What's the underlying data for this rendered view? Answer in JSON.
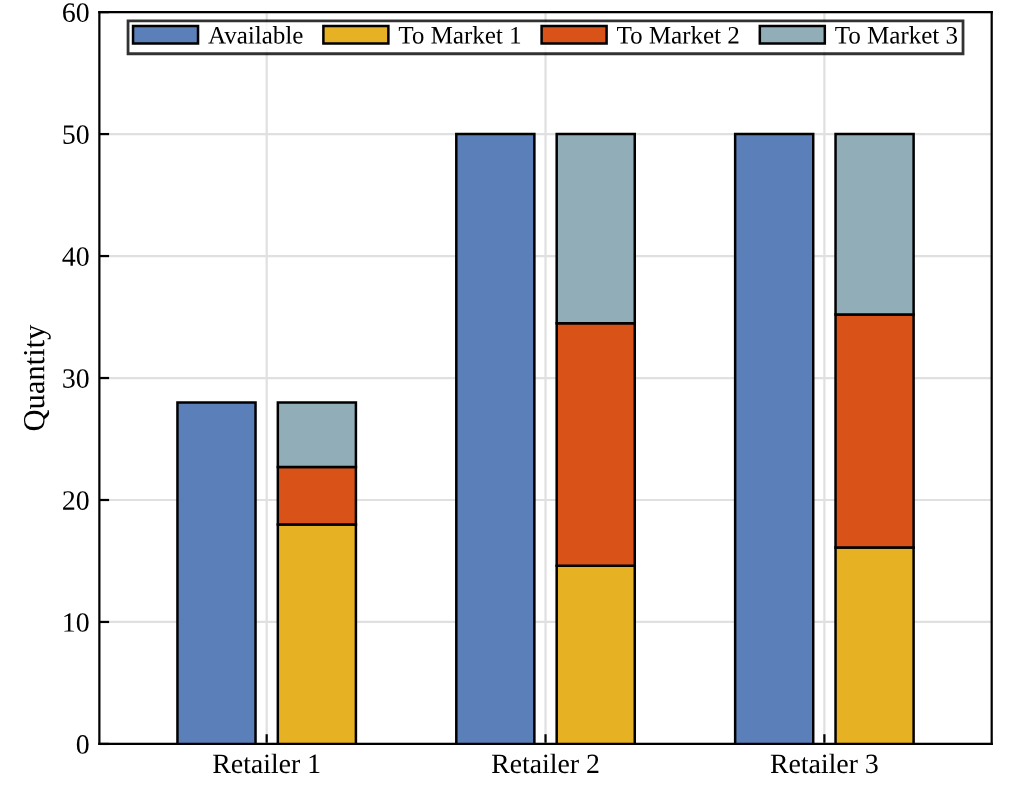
{
  "chart_data": {
    "type": "bar",
    "ylabel": "Quantity",
    "categories": [
      "Retailer 1",
      "Retailer 2",
      "Retailer 3"
    ],
    "series": [
      {
        "name": "Available",
        "color": "#5b7fb9",
        "values": [
          28,
          50,
          50
        ]
      },
      {
        "name": "To Market 1",
        "color": "#e6b122",
        "values": [
          18,
          14.6,
          16.1
        ],
        "base": [
          0,
          0,
          0
        ]
      },
      {
        "name": "To Market 2",
        "color": "#d95319",
        "values": [
          4.7,
          19.9,
          19.1
        ],
        "base": [
          18,
          14.6,
          16.1
        ]
      },
      {
        "name": "To Market 3",
        "color": "#90adb8",
        "values": [
          5.3,
          15.5,
          14.8
        ],
        "base": [
          22.7,
          34.5,
          35.2
        ]
      }
    ],
    "ylim": [
      0,
      60
    ],
    "yticks": [
      0,
      10,
      20,
      30,
      40,
      50,
      60
    ],
    "grid": true,
    "legend": "top"
  }
}
